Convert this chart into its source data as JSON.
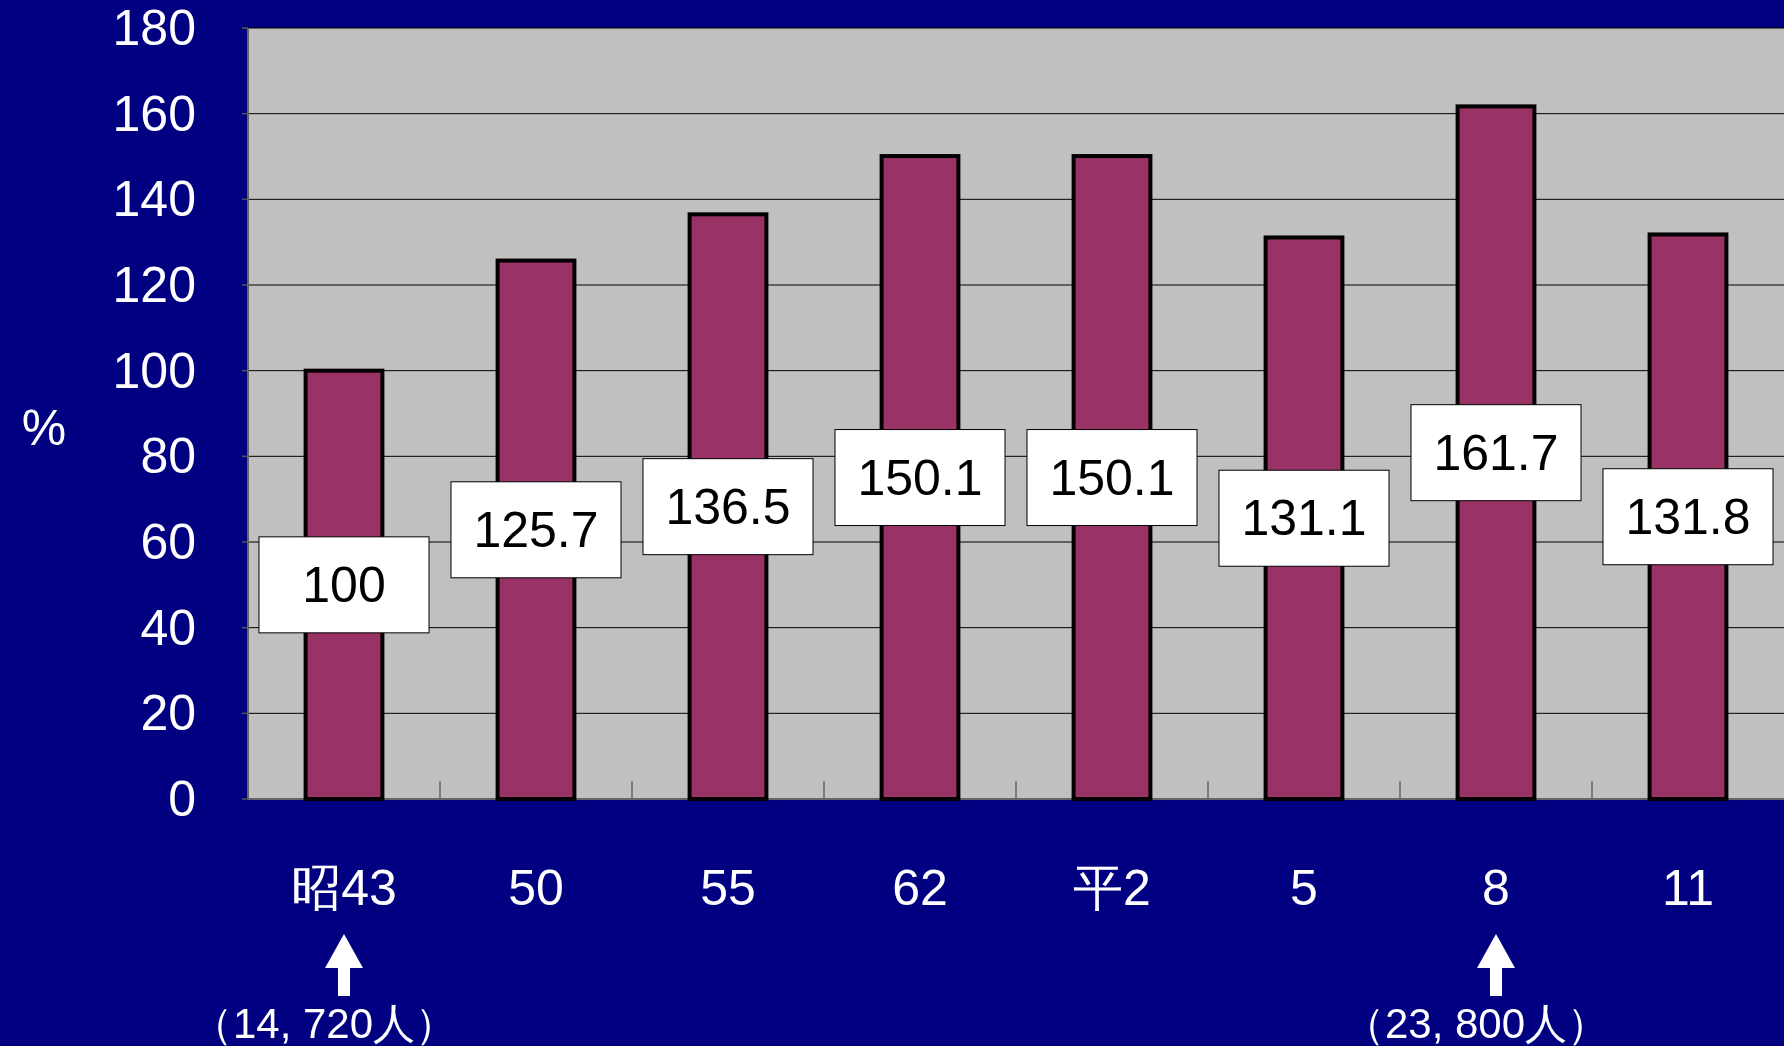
{
  "chart_data": {
    "type": "bar",
    "ylabel": "%",
    "categories": [
      "昭43",
      "50",
      "55",
      "62",
      "平2",
      "5",
      "8",
      "11"
    ],
    "values": [
      100,
      125.7,
      136.5,
      150.1,
      150.1,
      131.1,
      161.7,
      131.8
    ],
    "color": "#993366",
    "data_labels": true,
    "ylim": [
      0,
      180
    ],
    "yticks": [
      0,
      20,
      40,
      60,
      80,
      100,
      120,
      140,
      160,
      180
    ],
    "grid": "y",
    "annotations": [
      "（14, 720人）",
      "（23, 800人）"
    ]
  }
}
